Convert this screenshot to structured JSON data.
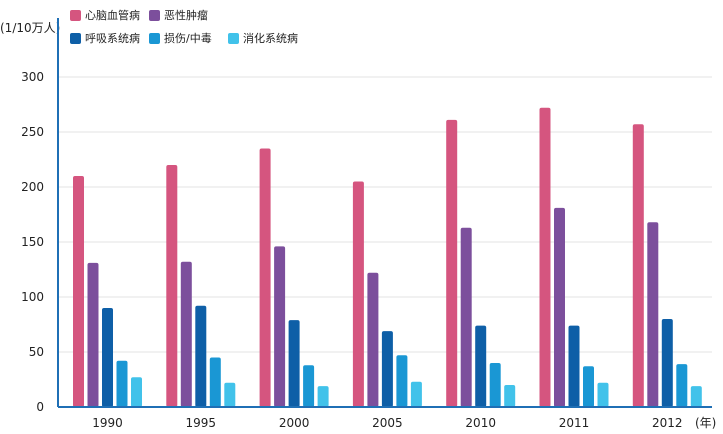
{
  "chart_data": {
    "type": "bar",
    "categories": [
      "1990",
      "1995",
      "2000",
      "2005",
      "2010",
      "2011",
      "2012"
    ],
    "ylabel": "(1/10万人)",
    "xlabel": "(年)",
    "ylim": [
      0,
      320
    ],
    "yticks": [
      0,
      50,
      100,
      150,
      200,
      250,
      300
    ],
    "grid": true,
    "legend_position": "top-left",
    "series": [
      {
        "name": "心脑血管病",
        "color": "#d5557f",
        "values": [
          210,
          220,
          235,
          205,
          261,
          272,
          257
        ]
      },
      {
        "name": "恶性肿瘤",
        "color": "#7c4f9c",
        "values": [
          131,
          132,
          146,
          122,
          163,
          181,
          168
        ]
      },
      {
        "name": "呼吸系统病",
        "color": "#0e5fa7",
        "values": [
          90,
          92,
          79,
          69,
          74,
          74,
          80
        ]
      },
      {
        "name": "损伤/中毒",
        "color": "#1a97d4",
        "values": [
          42,
          45,
          38,
          47,
          40,
          37,
          39
        ]
      },
      {
        "name": "消化系统病",
        "color": "#41c2ea",
        "values": [
          27,
          22,
          19,
          23,
          20,
          22,
          19
        ]
      }
    ]
  }
}
